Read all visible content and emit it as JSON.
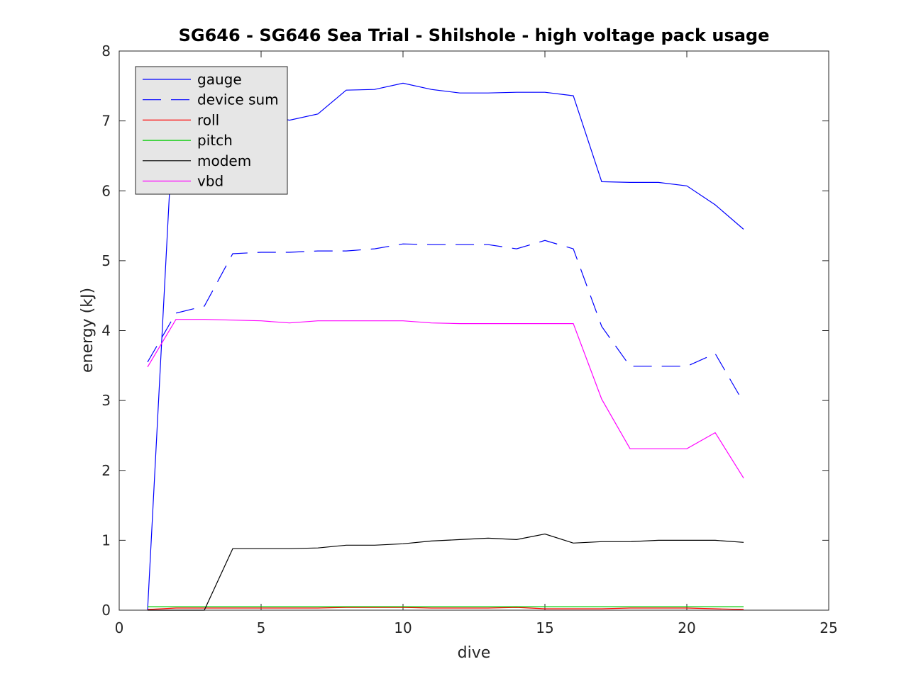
{
  "chart_data": {
    "type": "line",
    "title": "SG646 - SG646 Sea Trial - Shilshole - high voltage pack usage",
    "xlabel": "dive",
    "ylabel": "energy (kJ)",
    "xlim": [
      0,
      25
    ],
    "ylim": [
      0,
      8
    ],
    "xticks": [
      "0",
      "5",
      "10",
      "15",
      "20",
      "25"
    ],
    "yticks": [
      "0",
      "1",
      "2",
      "3",
      "4",
      "5",
      "6",
      "7",
      "8"
    ],
    "grid": false,
    "legend_position": "top-left",
    "x": [
      1,
      2,
      3,
      4,
      5,
      6,
      7,
      8,
      9,
      10,
      11,
      12,
      13,
      14,
      15,
      16,
      17,
      18,
      19,
      20,
      21,
      22
    ],
    "series": [
      {
        "name": "gauge",
        "color": "#0000ff",
        "dash": "solid",
        "values": [
          0.0,
          7.74,
          7.74,
          7.25,
          7.1,
          7.01,
          7.1,
          7.44,
          7.45,
          7.54,
          7.45,
          7.4,
          7.4,
          7.41,
          7.41,
          7.36,
          6.13,
          6.12,
          6.12,
          6.07,
          5.8,
          5.45
        ]
      },
      {
        "name": "device sum",
        "color": "#0000ff",
        "dash": "dashed",
        "values": [
          3.55,
          4.25,
          4.35,
          5.1,
          5.12,
          5.12,
          5.14,
          5.14,
          5.17,
          5.24,
          5.23,
          5.23,
          5.23,
          5.17,
          5.29,
          5.17,
          4.06,
          3.49,
          3.49,
          3.49,
          3.67,
          2.97
        ]
      },
      {
        "name": "roll",
        "color": "#ff0000",
        "dash": "solid",
        "values": [
          0.01,
          0.03,
          0.03,
          0.03,
          0.03,
          0.03,
          0.03,
          0.04,
          0.04,
          0.04,
          0.03,
          0.03,
          0.03,
          0.04,
          0.02,
          0.02,
          0.02,
          0.03,
          0.03,
          0.03,
          0.02,
          0.01
        ]
      },
      {
        "name": "pitch",
        "color": "#00cc00",
        "dash": "solid",
        "values": [
          0.05,
          0.05,
          0.05,
          0.05,
          0.05,
          0.05,
          0.05,
          0.05,
          0.05,
          0.05,
          0.05,
          0.05,
          0.05,
          0.05,
          0.05,
          0.05,
          0.05,
          0.05,
          0.05,
          0.05,
          0.05,
          0.05
        ]
      },
      {
        "name": "modem",
        "color": "#000000",
        "dash": "solid",
        "values": [
          0.0,
          0.0,
          0.0,
          0.88,
          0.88,
          0.88,
          0.89,
          0.93,
          0.93,
          0.95,
          0.99,
          1.01,
          1.03,
          1.01,
          1.09,
          0.96,
          0.98,
          0.98,
          1.0,
          1.0,
          1.0,
          0.97
        ]
      },
      {
        "name": "vbd",
        "color": "#ff00ff",
        "dash": "solid",
        "values": [
          3.48,
          4.16,
          4.16,
          4.15,
          4.14,
          4.11,
          4.14,
          4.14,
          4.14,
          4.14,
          4.11,
          4.1,
          4.1,
          4.1,
          4.1,
          4.1,
          3.02,
          2.31,
          2.31,
          2.31,
          2.54,
          1.89
        ]
      }
    ]
  }
}
